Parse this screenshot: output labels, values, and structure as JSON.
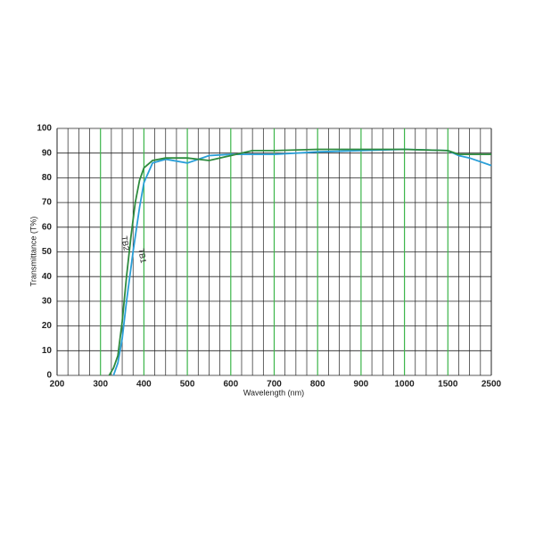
{
  "chart_data": {
    "type": "line",
    "x_label": "Wavelength (nm)",
    "y_label": "Transmittance (T%)",
    "xlim": [
      200,
      2500
    ],
    "xticks": [
      200,
      300,
      400,
      500,
      600,
      700,
      800,
      900,
      1000,
      1500,
      2500
    ],
    "ylim": [
      0,
      100
    ],
    "yticks": [
      0,
      10,
      20,
      30,
      40,
      50,
      60,
      70,
      80,
      90,
      100
    ],
    "grid": true,
    "tick_grid_color": "#3cb54a",
    "series": [
      {
        "name": "TB1",
        "color": "#2a9fd8",
        "x": [
          330,
          340,
          350,
          360,
          375,
          390,
          400,
          420,
          450,
          500,
          550,
          600,
          700,
          800,
          900,
          1000,
          1500,
          1750,
          2000,
          2500
        ],
        "values": [
          0,
          5,
          15,
          30,
          50,
          68,
          78,
          86,
          87.5,
          86,
          89,
          89.5,
          89.5,
          90.5,
          91,
          91.5,
          91,
          89,
          88,
          85
        ]
      },
      {
        "name": "TB2",
        "color": "#2e8b3e",
        "x": [
          320,
          330,
          340,
          350,
          360,
          370,
          380,
          390,
          400,
          420,
          450,
          500,
          550,
          600,
          650,
          700,
          800,
          900,
          1000,
          1500,
          1750,
          2500
        ],
        "values": [
          0,
          3,
          8,
          22,
          40,
          56,
          70,
          79,
          84,
          87,
          88,
          88,
          87,
          89,
          91,
          91,
          91.5,
          91.5,
          91.5,
          91,
          89.5,
          89.5
        ]
      }
    ]
  }
}
